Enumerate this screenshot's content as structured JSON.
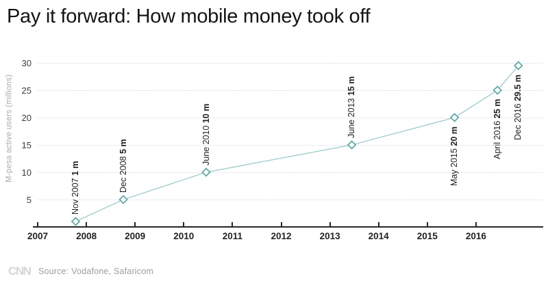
{
  "title": "Pay it forward: How mobile money took off",
  "chart_data": {
    "type": "line",
    "title": "Pay it forward: How mobile money took off",
    "xlabel": "",
    "ylabel": "M-pesa active users (millions)",
    "x_tick_labels": [
      "2007",
      "2008",
      "2009",
      "2010",
      "2011",
      "2012",
      "2013",
      "2014",
      "2015",
      "2016"
    ],
    "y_tick_values": [
      5,
      10,
      15,
      20,
      25,
      30
    ],
    "xlim": [
      2006.9,
      2017.4
    ],
    "ylim": [
      0,
      31
    ],
    "grid": "horizontal-dotted",
    "legend_position": "none",
    "series": [
      {
        "name": "M-pesa active users (millions)",
        "points": [
          {
            "date": "Nov 2007",
            "value_label": "1 m",
            "value": 1,
            "x": 2007.78,
            "label_side": "above"
          },
          {
            "date": "Dec 2008",
            "value_label": "5 m",
            "value": 5,
            "x": 2008.76,
            "label_side": "above"
          },
          {
            "date": "June 2010",
            "value_label": "10 m",
            "value": 10,
            "x": 2010.46,
            "label_side": "above"
          },
          {
            "date": "June 2013",
            "value_label": "15 m",
            "value": 15,
            "x": 2013.45,
            "label_side": "above"
          },
          {
            "date": "May 2015",
            "value_label": "20 m",
            "value": 20,
            "x": 2015.56,
            "label_side": "below"
          },
          {
            "date": "April 2016",
            "value_label": "25 m",
            "value": 25,
            "x": 2016.44,
            "label_side": "below"
          },
          {
            "date": "Dec 2016",
            "value_label": "29.5 m",
            "value": 29.5,
            "x": 2016.87,
            "label_side": "below"
          }
        ]
      }
    ],
    "colors": {
      "line": "#a2cecd",
      "marker_stroke": "#5da9a7",
      "marker_fill": "#ffffff",
      "grid": "#d9d9d9",
      "axis": "#262626",
      "annotation_text": "#222222"
    }
  },
  "footer": {
    "logo": "CNN",
    "source": "Source: Vodafone, Safaricom"
  }
}
